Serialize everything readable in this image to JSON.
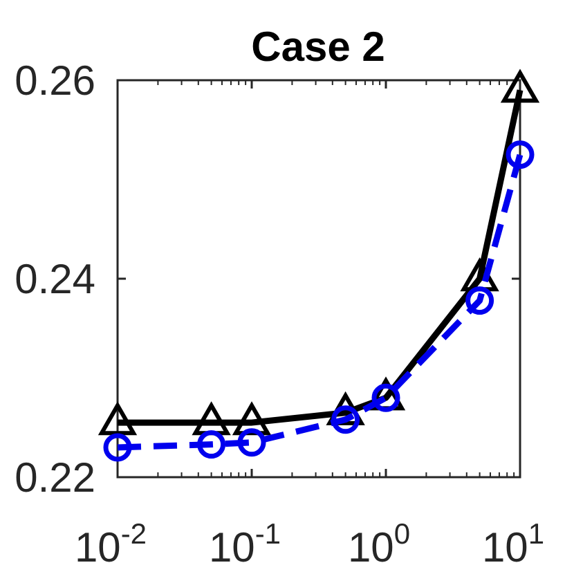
{
  "chart_data": {
    "type": "line",
    "title": "Case 2",
    "xlabel": "",
    "ylabel": "",
    "xscale": "log",
    "xlim": [
      0.01,
      10
    ],
    "ylim": [
      0.22,
      0.26
    ],
    "grid": false,
    "x": [
      0.01,
      0.05,
      0.1,
      0.5,
      1,
      5,
      10
    ],
    "series": [
      {
        "color": "#000000",
        "line_style": "solid",
        "marker": "triangle",
        "values": [
          0.2255,
          0.2255,
          0.2255,
          0.2265,
          0.228,
          0.24,
          0.259
        ]
      },
      {
        "color": "#0000ee",
        "line_style": "dashed",
        "marker": "circle",
        "values": [
          0.223,
          0.2233,
          0.2235,
          0.2258,
          0.228,
          0.2378,
          0.2525
        ]
      }
    ],
    "y_ticks": [
      {
        "value": 0.22,
        "label": "0.22"
      },
      {
        "value": 0.24,
        "label": "0.24"
      },
      {
        "value": 0.26,
        "label": "0.26"
      }
    ],
    "x_ticks": [
      {
        "value": 0.01,
        "base": "10",
        "exp": "-2"
      },
      {
        "value": 0.1,
        "base": "10",
        "exp": "-1"
      },
      {
        "value": 1,
        "base": "10",
        "exp": "0"
      },
      {
        "value": 10,
        "base": "10",
        "exp": "1"
      }
    ]
  }
}
